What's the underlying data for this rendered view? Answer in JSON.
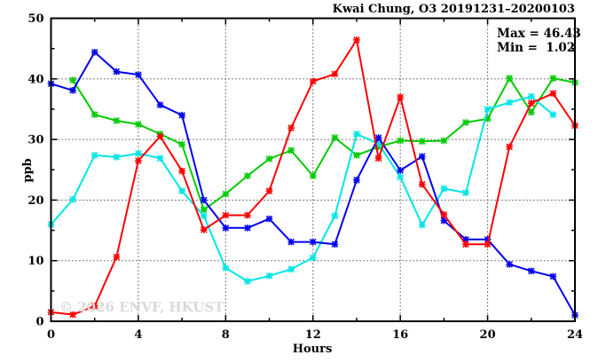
{
  "chart_data": {
    "type": "line",
    "title": "Kwai Chung, O3 20191231–20200103",
    "stats": {
      "max_label": "Max = 46.43",
      "min_label": "Min =  1.02"
    },
    "xlabel": "Hours",
    "ylabel": "ppb",
    "watermark": "© 2026 ENVF, HKUST",
    "xlim": [
      0,
      24
    ],
    "ylim": [
      0,
      50
    ],
    "x_ticks": [
      0,
      4,
      8,
      12,
      16,
      20,
      24
    ],
    "y_ticks": [
      0,
      10,
      20,
      30,
      40,
      50
    ],
    "x_minor_step": 2,
    "y_minor_step": 5,
    "grid": true,
    "legend": "none",
    "marker": "asterisk",
    "x": [
      0,
      1,
      2,
      3,
      4,
      5,
      6,
      7,
      8,
      9,
      10,
      11,
      12,
      13,
      14,
      15,
      16,
      17,
      18,
      19,
      20,
      21,
      22,
      23,
      24
    ],
    "series": [
      {
        "name": "green-line",
        "color": "#00cc00",
        "values": [
          null,
          39.8,
          34.1,
          33.1,
          32.5,
          30.9,
          29.2,
          18.4,
          21.0,
          24.0,
          26.8,
          28.2,
          24.0,
          30.3,
          27.4,
          28.8,
          29.8,
          29.7,
          29.8,
          32.8,
          33.4,
          40.1,
          34.5,
          40.1,
          39.4
        ]
      },
      {
        "name": "cyan-line",
        "color": "#00e6e6",
        "values": [
          16.0,
          20.1,
          27.4,
          27.1,
          27.7,
          26.9,
          21.5,
          17.4,
          8.8,
          6.6,
          7.5,
          8.6,
          10.5,
          17.4,
          30.9,
          29.3,
          23.8,
          15.9,
          21.9,
          21.2,
          35.0,
          36.1,
          37.1,
          34.1,
          null
        ]
      },
      {
        "name": "blue-line",
        "color": "#0000f0",
        "values": [
          39.2,
          38.1,
          44.4,
          41.2,
          40.7,
          35.7,
          34.0,
          20.0,
          15.4,
          15.4,
          16.9,
          13.1,
          13.1,
          12.7,
          23.3,
          30.3,
          24.9,
          27.2,
          16.6,
          13.5,
          13.5,
          9.4,
          8.3,
          7.4,
          1.02
        ]
      },
      {
        "name": "red-line",
        "color": "#ff0000",
        "values": [
          1.5,
          1.1,
          2.5,
          10.6,
          26.5,
          30.5,
          24.8,
          15.1,
          17.5,
          17.5,
          21.5,
          31.9,
          39.6,
          40.8,
          46.43,
          26.9,
          37.0,
          22.6,
          17.6,
          12.7,
          12.7,
          28.8,
          36.0,
          37.6,
          32.3
        ]
      }
    ]
  }
}
